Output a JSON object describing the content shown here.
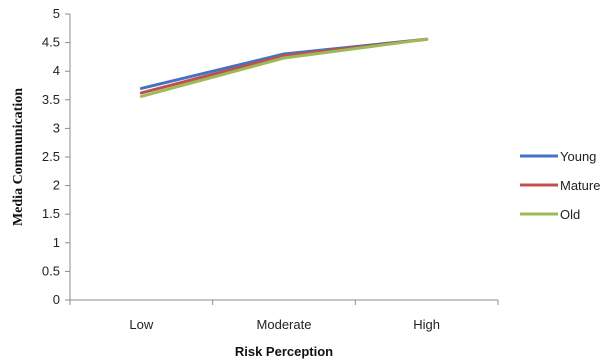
{
  "chart_data": {
    "type": "line",
    "categories": [
      "Low",
      "Moderate",
      "High"
    ],
    "series": [
      {
        "name": "Young",
        "color": "#4472C4",
        "values": [
          3.7,
          4.3,
          4.56
        ]
      },
      {
        "name": "Mature",
        "color": "#C0504D",
        "values": [
          3.62,
          4.27,
          4.56
        ]
      },
      {
        "name": "Old",
        "color": "#9BBB59",
        "values": [
          3.56,
          4.23,
          4.56
        ]
      }
    ],
    "title": "",
    "xlabel": "Risk Perception",
    "ylabel": "Media Communication",
    "ylim": [
      0,
      5
    ],
    "yticks": [
      "0",
      "0.5",
      "1",
      "1.5",
      "2",
      "2.5",
      "3",
      "3.5",
      "4",
      "4.5",
      "5"
    ],
    "grid": false,
    "legend_position": "right"
  }
}
